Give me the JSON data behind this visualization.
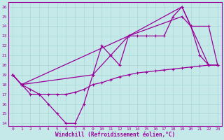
{
  "xlabel": "Windchill (Refroidissement éolien,°C)",
  "bg_color": "#c5e8e8",
  "line_color": "#990099",
  "grid_color": "#a8d8d8",
  "xlim_min": -0.5,
  "xlim_max": 23.5,
  "ylim_min": 13.7,
  "ylim_max": 26.5,
  "xticks": [
    0,
    1,
    2,
    3,
    4,
    5,
    6,
    7,
    8,
    9,
    10,
    11,
    12,
    13,
    14,
    15,
    16,
    17,
    18,
    19,
    20,
    21,
    22,
    23
  ],
  "yticks": [
    14,
    15,
    16,
    17,
    18,
    19,
    20,
    21,
    22,
    23,
    24,
    25,
    26
  ],
  "series1_x": [
    0,
    1,
    2,
    3,
    4,
    5,
    6,
    7,
    8,
    9,
    10,
    11,
    12,
    13,
    14,
    15,
    16,
    17,
    18,
    19,
    20,
    21,
    22
  ],
  "series1_y": [
    19,
    18,
    17,
    17,
    16,
    15,
    14,
    14,
    16,
    19,
    22,
    21,
    20,
    23,
    23,
    23,
    23,
    23,
    25,
    26,
    24,
    21,
    20
  ],
  "series2_x": [
    0,
    1,
    2,
    3,
    4,
    5,
    6,
    7,
    8,
    9,
    10,
    11,
    12,
    13,
    14,
    15,
    16,
    17,
    18,
    19,
    20,
    21,
    22,
    23
  ],
  "series2_y": [
    19,
    18,
    17.5,
    17,
    17,
    17,
    17,
    17.2,
    17.5,
    18,
    18.2,
    18.5,
    18.8,
    19,
    19.2,
    19.3,
    19.4,
    19.5,
    19.6,
    19.7,
    19.8,
    19.9,
    20,
    20
  ],
  "series3_x": [
    0,
    1,
    13,
    19,
    20,
    22,
    23
  ],
  "series3_y": [
    19,
    18,
    23,
    26,
    24,
    20,
    20
  ],
  "series4_x": [
    0,
    1,
    9,
    13,
    19,
    20,
    22,
    23
  ],
  "series4_y": [
    19,
    18,
    19,
    23,
    25,
    24,
    24,
    20
  ]
}
